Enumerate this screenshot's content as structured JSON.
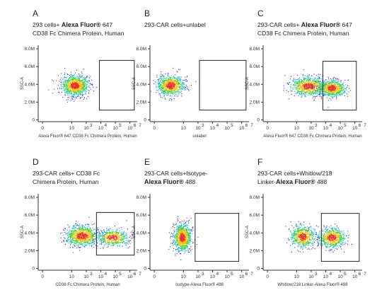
{
  "chart_data": [
    {
      "type": "scatter",
      "letter": "A",
      "title_parts": [
        {
          "t": "293  cells+  ",
          "b": false
        },
        {
          "t": "Alexa  Fluor®",
          "b": true
        },
        {
          "t": "  647",
          "b": false
        },
        {
          "br": true
        },
        {
          "t": "CD38 Fc Chimera Protein, Human",
          "b": false
        }
      ],
      "xlabel": "Alexa Fluor® 647 CD38 Fc Chimera Protein, Human",
      "ylabel": "SSC-A",
      "populations": [
        {
          "x": 2.2,
          "y": 3.9,
          "sx": 0.45,
          "sy": 0.55,
          "n": 1100
        }
      ],
      "gate": {
        "x": [
          3.9,
          6.3
        ],
        "y": [
          1.1,
          6.7
        ]
      }
    },
    {
      "type": "scatter",
      "letter": "B",
      "title_parts": [
        {
          "t": "293-CAR cells+unlabel",
          "b": false
        }
      ],
      "xlabel": "unlabel",
      "ylabel": "SSC-A",
      "populations": [
        {
          "x": 1.1,
          "y": 3.9,
          "sx": 0.45,
          "sy": 0.55,
          "n": 900
        }
      ],
      "gate": {
        "x": [
          3.1,
          6.3
        ],
        "y": [
          1.1,
          6.7
        ]
      }
    },
    {
      "type": "scatter",
      "letter": "C",
      "title_parts": [
        {
          "t": "293-CAR cells+ ",
          "b": false
        },
        {
          "t": "Alexa Fluor®",
          "b": true
        },
        {
          "t": " 647",
          "b": false
        },
        {
          "br": true
        },
        {
          "t": "CD38 Fc Chimera Protein, Human",
          "b": false
        }
      ],
      "xlabel": "Alexa Fluor® 647 CD38 Fc Chimera Protein, Human",
      "ylabel": "SSC-A",
      "populations": [
        {
          "x": 2.8,
          "y": 3.8,
          "sx": 0.6,
          "sy": 0.5,
          "n": 900
        },
        {
          "x": 4.4,
          "y": 3.6,
          "sx": 0.45,
          "sy": 0.45,
          "n": 800
        }
      ],
      "gate": {
        "x": [
          3.8,
          6.1
        ],
        "y": [
          1.1,
          6.6
        ]
      }
    },
    {
      "type": "scatter",
      "letter": "D",
      "title_parts": [
        {
          "t": "293-CAR cells+ CD38 Fc",
          "b": false
        },
        {
          "br": true
        },
        {
          "t": "Chimera Protein, Human",
          "b": false
        }
      ],
      "xlabel": "CD38 Fc Chimera Protein, Human",
      "ylabel": "SSC-A",
      "populations": [
        {
          "x": 2.7,
          "y": 3.7,
          "sx": 0.55,
          "sy": 0.55,
          "n": 1000
        },
        {
          "x": 4.8,
          "y": 3.5,
          "sx": 0.5,
          "sy": 0.45,
          "n": 550
        }
      ],
      "gate": {
        "x": [
          3.7,
          6.3
        ],
        "y": [
          1.5,
          6.3
        ]
      }
    },
    {
      "type": "scatter",
      "letter": "E",
      "title_parts": [
        {
          "t": "293-CAR cells+Isotype-",
          "b": false
        },
        {
          "br": true
        },
        {
          "t": "Alexa Fluor®",
          "b": true
        },
        {
          "t": " 488",
          "b": false
        }
      ],
      "xlabel": "Isotype-Alexa Fluor® 488",
      "ylabel": "SSC-A",
      "populations": [
        {
          "x": 1.9,
          "y": 3.5,
          "sx": 0.3,
          "sy": 0.75,
          "n": 1000
        }
      ],
      "gate": {
        "x": [
          2.8,
          5.8
        ],
        "y": [
          0.8,
          6.2
        ]
      }
    },
    {
      "type": "scatter",
      "letter": "F",
      "title_parts": [
        {
          "t": "293-CAR  cells+Whitlow/218",
          "b": false
        },
        {
          "br": true
        },
        {
          "t": "Linker-",
          "b": false
        },
        {
          "t": "Alexa Fluor®",
          "b": true
        },
        {
          "t": " 488",
          "b": false
        }
      ],
      "xlabel": "Whitlow/218 Linker-Alexa Fluor® 488",
      "ylabel": "SSC-A",
      "populations": [
        {
          "x": 2.4,
          "y": 3.6,
          "sx": 0.4,
          "sy": 0.6,
          "n": 700
        },
        {
          "x": 4.4,
          "y": 3.5,
          "sx": 0.45,
          "sy": 0.55,
          "n": 700
        }
      ],
      "gate": {
        "x": [
          3.7,
          6.3
        ],
        "y": [
          0.8,
          6.2
        ]
      }
    }
  ],
  "axes": {
    "x_ticks": [
      {
        "v": 0,
        "l": "0"
      },
      {
        "v": 2,
        "l": "10"
      },
      {
        "v": 3,
        "l": "10"
      },
      {
        "v": 4,
        "l": "10"
      },
      {
        "v": 5,
        "l": "10"
      },
      {
        "v": 6,
        "l": "10"
      }
    ],
    "x_exp": [
      "",
      "",
      "3",
      "4",
      "5",
      "6"
    ],
    "x_exp_top": {
      "v": 7,
      "l": "7"
    },
    "y_ticks": [
      {
        "v": 0,
        "l": "0"
      },
      {
        "v": 2,
        "l": "2.0M"
      },
      {
        "v": 4,
        "l": "4.0M"
      },
      {
        "v": 6,
        "l": "6.0M"
      },
      {
        "v": 8,
        "l": "8.0M"
      }
    ],
    "xlim": [
      -0.3,
      6.5
    ],
    "ylim": [
      -0.2,
      8.4
    ]
  },
  "colors": {
    "low": "#2b2bd8",
    "mid": "#19b8d0",
    "high": "#2ecc40",
    "peak": "#f2c318",
    "max": "#e2342b"
  }
}
